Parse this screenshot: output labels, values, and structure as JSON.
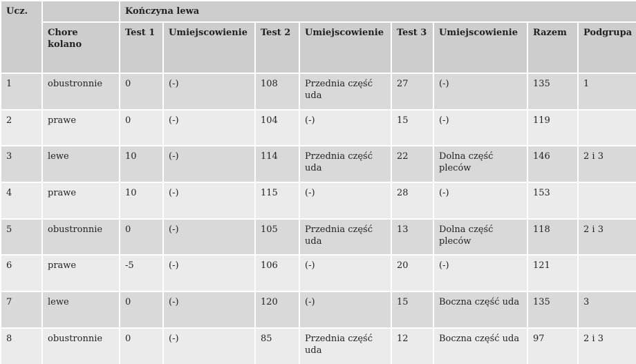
{
  "table": {
    "corner": "Ucz.",
    "group_header": "Kończyna lewa",
    "columns": [
      "Chore kolano",
      "Test 1",
      "Umiejscowienie",
      "Test 2",
      "Umiejscowienie",
      "Test 3",
      "Umiejscowienie",
      "Razem",
      "Podgrupa"
    ],
    "rows": [
      [
        "1",
        "obustronnie",
        "0",
        "(-)",
        "108",
        "Przednia część uda",
        "27",
        "(-)",
        "135",
        "1"
      ],
      [
        "2",
        "prawe",
        "0",
        "(-)",
        "104",
        "(-)",
        "15",
        "(-)",
        "119",
        null
      ],
      [
        "3",
        "lewe",
        "10",
        "(-)",
        "114",
        "Przednia część uda",
        "22",
        "Dolna część pleców",
        "146",
        "2 i 3"
      ],
      [
        "4",
        "prawe",
        "10",
        "(-)",
        "115",
        "(-)",
        "28",
        "(-)",
        "153",
        null
      ],
      [
        "5",
        "obustronnie",
        "0",
        "(-)",
        "105",
        "Przednia część uda",
        "13",
        "Dolna część pleców",
        "118",
        "2 i 3"
      ],
      [
        "6",
        "prawe",
        "-5",
        "(-)",
        "106",
        "(-)",
        "20",
        "(-)",
        "121",
        null
      ],
      [
        "7",
        "lewe",
        "0",
        "(-)",
        "120",
        "(-)",
        "15",
        "Boczna część uda",
        "135",
        "3"
      ],
      [
        "8",
        "obustronnie",
        "0",
        "(-)",
        "85",
        "Przednia część uda",
        "12",
        "Boczna część uda",
        "97",
        "2 i 3"
      ]
    ]
  }
}
